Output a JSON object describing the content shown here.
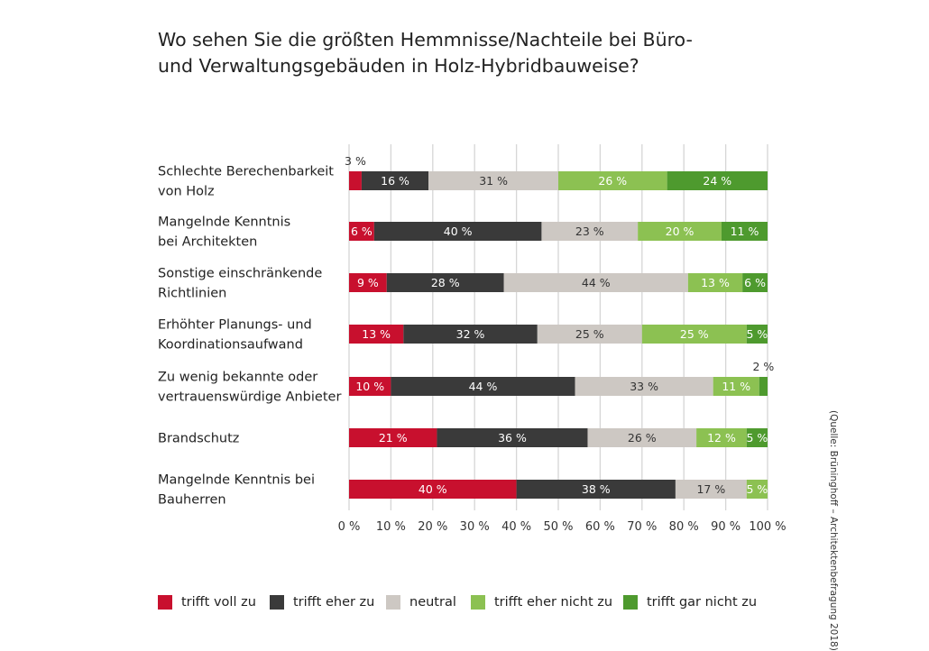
{
  "title_lines": [
    "Wo sehen Sie die größten Hemmnisse/Nachteile bei Büro-",
    "und Verwaltungsgebäuden in Holz-Hybridbauweise?"
  ],
  "source": "(Quelle: Brüninghoff – Architektenbefragung 2018)",
  "colors": {
    "trifft_voll_zu": "#c8102e",
    "trifft_eher_zu": "#3a3a3a",
    "neutral": "#cdc8c3",
    "trifft_eher_nicht_zu": "#8cc152",
    "trifft_gar_nicht_zu": "#4e9a2e",
    "grid": "#d6d6d6"
  },
  "legend": [
    {
      "label": "trifft voll zu",
      "color": "#c8102e"
    },
    {
      "label": "trifft eher zu",
      "color": "#3a3a3a"
    },
    {
      "label": "neutral",
      "color": "#cdc8c3"
    },
    {
      "label": "trifft eher nicht zu",
      "color": "#8cc152"
    },
    {
      "label": "trifft gar nicht zu",
      "color": "#4e9a2e"
    }
  ],
  "chart_data": {
    "type": "bar",
    "orientation": "horizontal",
    "stacked": true,
    "title": "Wo sehen Sie die größten Hemmnisse/Nachteile bei Büro- und Verwaltungsgebäuden in Holz-Hybridbauweise?",
    "xlim": [
      0,
      100
    ],
    "x_ticks": [
      "0 %",
      "10 %",
      "20 %",
      "30 %",
      "40 %",
      "50 %",
      "60 %",
      "70 %",
      "80 %",
      "90 %",
      "100 %"
    ],
    "grid": "vertical",
    "legend_position": "bottom",
    "categories": [
      [
        "Schlechte Berechenbarkeit",
        "von Holz"
      ],
      [
        "Mangelnde Kenntnis",
        "bei Architekten"
      ],
      [
        "Sonstige einschränkende",
        "Richtlinien"
      ],
      [
        "Erhöhter Planungs- und",
        "Koordinationsaufwand"
      ],
      [
        "Zu wenig bekannte oder",
        "vertrauenswürdige Anbieter"
      ],
      [
        "Brandschutz"
      ],
      [
        "Mangelnde Kenntnis bei",
        "Bauherren"
      ]
    ],
    "series": [
      {
        "name": "trifft voll zu",
        "color": "#c8102e",
        "values": [
          3,
          6,
          9,
          13,
          10,
          21,
          40
        ],
        "labels": [
          "3 %",
          "6 %",
          "9 %",
          "13 %",
          "10 %",
          "21 %",
          "40 %"
        ],
        "label_outside": [
          true,
          false,
          false,
          false,
          false,
          false,
          false
        ]
      },
      {
        "name": "trifft eher zu",
        "color": "#3a3a3a",
        "values": [
          16,
          40,
          28,
          32,
          44,
          36,
          38
        ],
        "labels": [
          "16 %",
          "40 %",
          "28 %",
          "32 %",
          "44 %",
          "36 %",
          "38 %"
        ],
        "label_outside": [
          false,
          false,
          false,
          false,
          false,
          false,
          false
        ]
      },
      {
        "name": "neutral",
        "color": "#cdc8c3",
        "values": [
          31,
          23,
          44,
          25,
          33,
          26,
          17
        ],
        "labels": [
          "31 %",
          "23 %",
          "44 %",
          "25 %",
          "33 %",
          "26 %",
          "17 %"
        ],
        "label_outside": [
          false,
          false,
          false,
          false,
          false,
          false,
          false
        ]
      },
      {
        "name": "trifft eher nicht zu",
        "color": "#8cc152",
        "values": [
          26,
          20,
          13,
          25,
          11,
          12,
          5
        ],
        "labels": [
          "26 %",
          "20 %",
          "13 %",
          "25 %",
          "11 %",
          "12 %",
          "5 %"
        ],
        "label_outside": [
          false,
          false,
          false,
          false,
          false,
          false,
          false
        ]
      },
      {
        "name": "trifft gar nicht zu",
        "color": "#4e9a2e",
        "values": [
          24,
          11,
          6,
          5,
          2,
          5,
          0
        ],
        "labels": [
          "24 %",
          "11 %",
          "6 %",
          "5 %",
          "2 %",
          "5 %",
          ""
        ],
        "label_outside": [
          false,
          false,
          false,
          false,
          true,
          false,
          false
        ]
      }
    ]
  }
}
